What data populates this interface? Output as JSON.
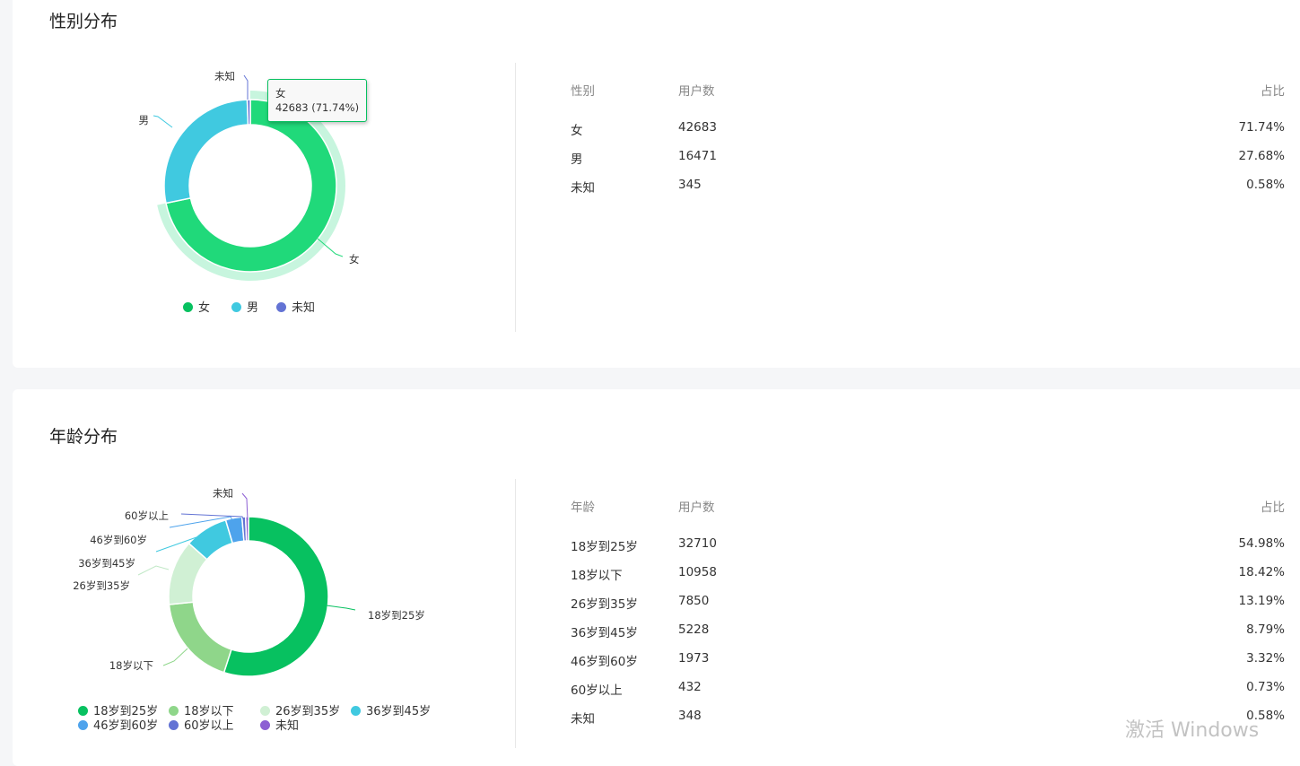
{
  "gender": {
    "title": "性别分布",
    "tooltip": {
      "name": "女",
      "value": "42683 (71.74%)"
    },
    "table": {
      "headers": [
        "性别",
        "用户数",
        "占比"
      ],
      "rows": [
        [
          "女",
          "42683",
          "71.74%"
        ],
        [
          "男",
          "16471",
          "27.68%"
        ],
        [
          "未知",
          "345",
          "0.58%"
        ]
      ]
    },
    "chart_data": {
      "type": "pie",
      "donut": true,
      "highlighted": "女",
      "categories": [
        "女",
        "男",
        "未知"
      ],
      "values": [
        42683,
        16471,
        345
      ],
      "colors": [
        "#20d97a",
        "#40c9e0",
        "#6373d4"
      ],
      "legend_colors": [
        "#07c160",
        "#40c9e0",
        "#6373d4"
      ],
      "legend": "bottom"
    }
  },
  "age": {
    "title": "年龄分布",
    "table": {
      "headers": [
        "年龄",
        "用户数",
        "占比"
      ],
      "rows": [
        [
          "18岁到25岁",
          "32710",
          "54.98%"
        ],
        [
          "18岁以下",
          "10958",
          "18.42%"
        ],
        [
          "26岁到35岁",
          "7850",
          "13.19%"
        ],
        [
          "36岁到45岁",
          "5228",
          "8.79%"
        ],
        [
          "46岁到60岁",
          "1973",
          "3.32%"
        ],
        [
          "60岁以上",
          "432",
          "0.73%"
        ],
        [
          "未知",
          "348",
          "0.58%"
        ]
      ]
    },
    "chart_data": {
      "type": "pie",
      "donut": true,
      "categories": [
        "18岁到25岁",
        "18岁以下",
        "26岁到35岁",
        "36岁到45岁",
        "46岁到60岁",
        "60岁以上",
        "未知"
      ],
      "values": [
        32710,
        10958,
        7850,
        5228,
        1973,
        432,
        348
      ],
      "colors": [
        "#07c160",
        "#8fd68a",
        "#d0f0d4",
        "#40c9e0",
        "#4ea3ec",
        "#6373d4",
        "#8d5fd3"
      ],
      "legend": "bottom"
    }
  },
  "watermark": "激活 Windows"
}
